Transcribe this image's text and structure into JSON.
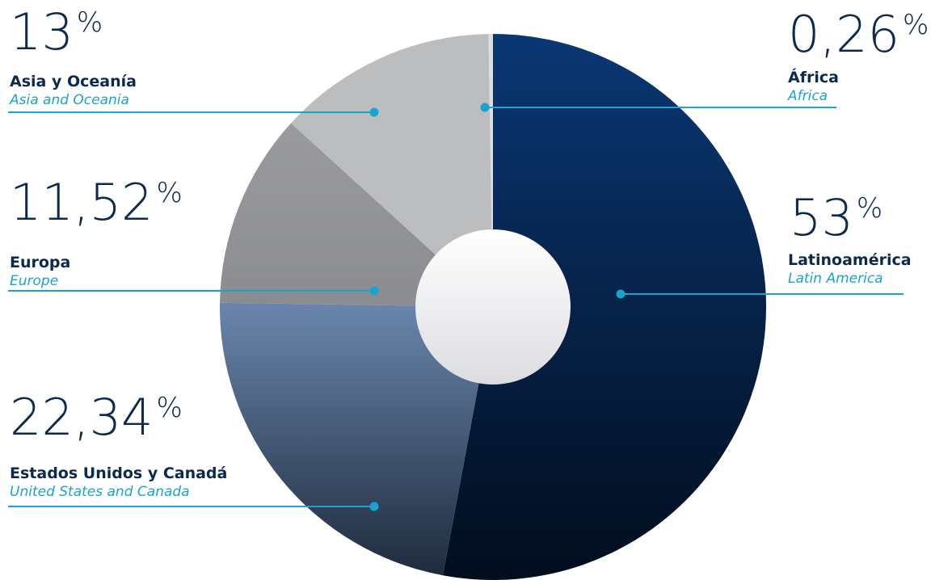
{
  "chart_data": {
    "type": "pie",
    "donut": true,
    "title": "",
    "legend": "none",
    "slices": [
      {
        "key": "latam",
        "label": "Latinoamérica",
        "label_en": "Latin America",
        "value": 53,
        "display": "53",
        "unit": "%",
        "color_top": "#0a3774",
        "color_bottom": "#020d1d"
      },
      {
        "key": "usca",
        "label": "Estados Unidos y Canadá",
        "label_en": "United States and Canada",
        "value": 22.34,
        "display": "22,34",
        "unit": "%",
        "color_top": "#6a86ad",
        "color_bottom": "#1e2b3c"
      },
      {
        "key": "europe",
        "label": "Europa",
        "label_en": "Europe",
        "value": 11.52,
        "display": "11,52",
        "unit": "%",
        "color_top": "#9a9b9e",
        "color_bottom": "#8b8c8f"
      },
      {
        "key": "asia",
        "label": "Asia y Oceanía",
        "label_en": "Asia and Oceania",
        "value": 13,
        "display": "13",
        "unit": "%",
        "color_top": "#bcbdbf",
        "color_bottom": "#bcbdbf"
      },
      {
        "key": "africa",
        "label": "África",
        "label_en": "Africa",
        "value": 0.26,
        "display": "0,26",
        "unit": "%",
        "color_top": "#dcdddf",
        "color_bottom": "#dcdddf"
      }
    ],
    "colors": {
      "leader": "#1aa3cc",
      "text_dark": "#0b2a4d",
      "hole_top": "#ffffff",
      "hole_bottom": "#dcdde1"
    }
  }
}
